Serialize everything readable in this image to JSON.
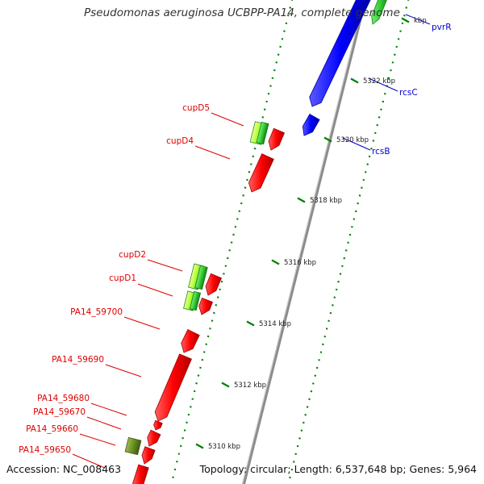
{
  "title": "Pseudomonas aeruginosa UCBPP-PA14, complete genome",
  "footer": {
    "accession": "Accession: NC_008463",
    "topology": "Topology: circular; Length: 6,537,648 bp; Genes: 5,964"
  },
  "colors": {
    "genome_line": "#8c8c8c",
    "gene_red": "#ff0000",
    "gene_blue": "#0000ff",
    "gene_green": "#33cc33",
    "gene_lightgreen": "#ccff33",
    "gene_olive": "#6b8e23",
    "tick_green": "#008000",
    "label_red": "#dd0000",
    "label_blue": "#0000cc"
  },
  "scale": {
    "ticks": [
      {
        "label": "5310 kbp"
      },
      {
        "label": "5312 kbp"
      },
      {
        "label": "5314 kbp"
      },
      {
        "label": "5316 kbp"
      },
      {
        "label": "5318 kbp"
      },
      {
        "label": "5320 kbp"
      },
      {
        "label": "5322 kbp"
      },
      {
        "label": "kbp"
      }
    ]
  },
  "gene_labels": {
    "pvrR": "pvrR",
    "rcsC": "rcsC",
    "rcsB": "rcsB",
    "cupD5": "cupD5",
    "cupD4": "cupD4",
    "cupD2": "cupD2",
    "cupD1": "cupD1",
    "PA14_59700": "PA14_59700",
    "PA14_59690": "PA14_59690",
    "PA14_59680": "PA14_59680",
    "PA14_59670": "PA14_59670",
    "PA14_59660": "PA14_59660",
    "PA14_59650": "PA14_59650"
  }
}
